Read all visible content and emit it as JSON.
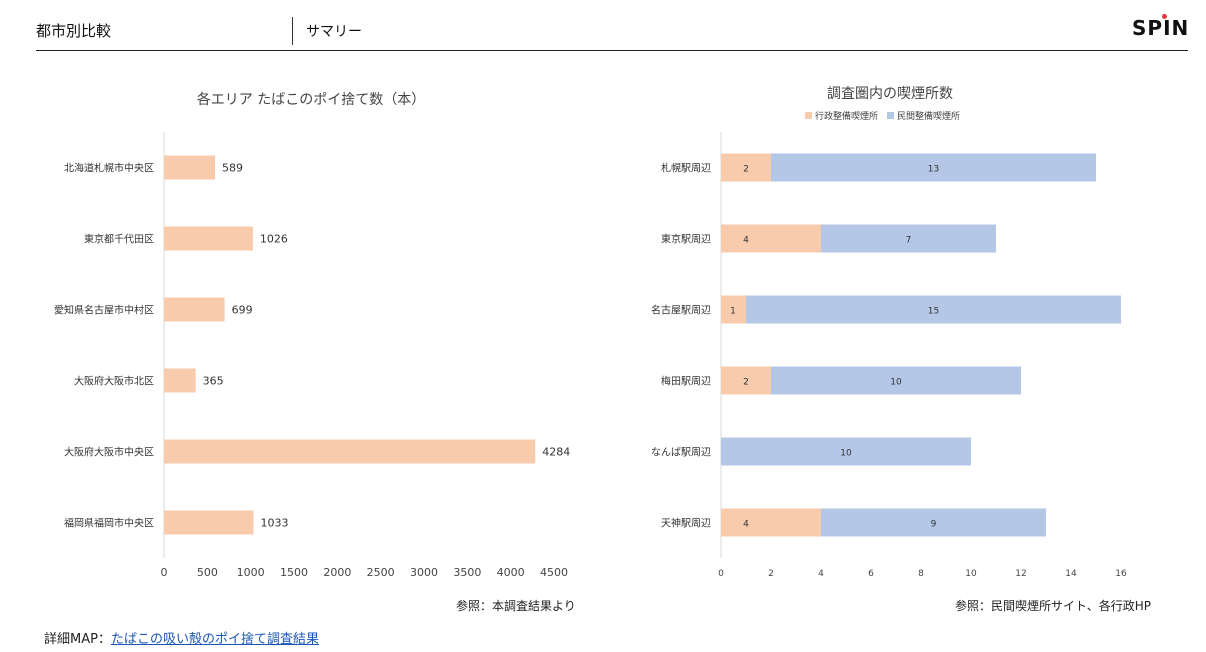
{
  "header": {
    "section": "都市別比較",
    "subtitle": "サマリー",
    "logo": "SPIN"
  },
  "chart_data": [
    {
      "type": "bar",
      "orientation": "horizontal",
      "title": "各エリア たばこのポイ捨て数（本）",
      "categories": [
        "北海道札幌市中央区",
        "東京都千代田区",
        "愛知県名古屋市中村区",
        "大阪府大阪市北区",
        "大阪府大阪市中央区",
        "福岡県福岡市中央区"
      ],
      "values": [
        589,
        1026,
        699,
        365,
        4284,
        1033
      ],
      "xlim": [
        0,
        4500
      ],
      "xticks": [
        0,
        500,
        1000,
        1500,
        2000,
        2500,
        3000,
        3500,
        4000,
        4500
      ],
      "color": "#f8cbad",
      "grid": false
    },
    {
      "type": "bar",
      "orientation": "horizontal",
      "stacked": true,
      "title": "調査圏内の喫煙所数",
      "categories": [
        "札幌駅周辺",
        "東京駅周辺",
        "名古屋駅周辺",
        "梅田駅周辺",
        "なんば駅周辺",
        "天神駅周辺"
      ],
      "series": [
        {
          "name": "行政整備喫煙所",
          "values": [
            2,
            4,
            1,
            2,
            0,
            4
          ],
          "color": "#f8cbad"
        },
        {
          "name": "民間整備喫煙所",
          "values": [
            13,
            7,
            15,
            10,
            10,
            9
          ],
          "color": "#b4c7e7"
        }
      ],
      "xlim": [
        0,
        16
      ],
      "xticks": [
        0,
        2,
        4,
        6,
        8,
        10,
        12,
        14,
        16
      ],
      "legend": "top",
      "grid": false
    }
  ],
  "footer": {
    "ref_left": "参照：本調査結果より",
    "ref_right": "参照：民間喫煙所サイト、各行政HP",
    "detail_label": "詳細MAP：",
    "detail_link": "たばこの吸い殻のポイ捨て調査結果"
  }
}
